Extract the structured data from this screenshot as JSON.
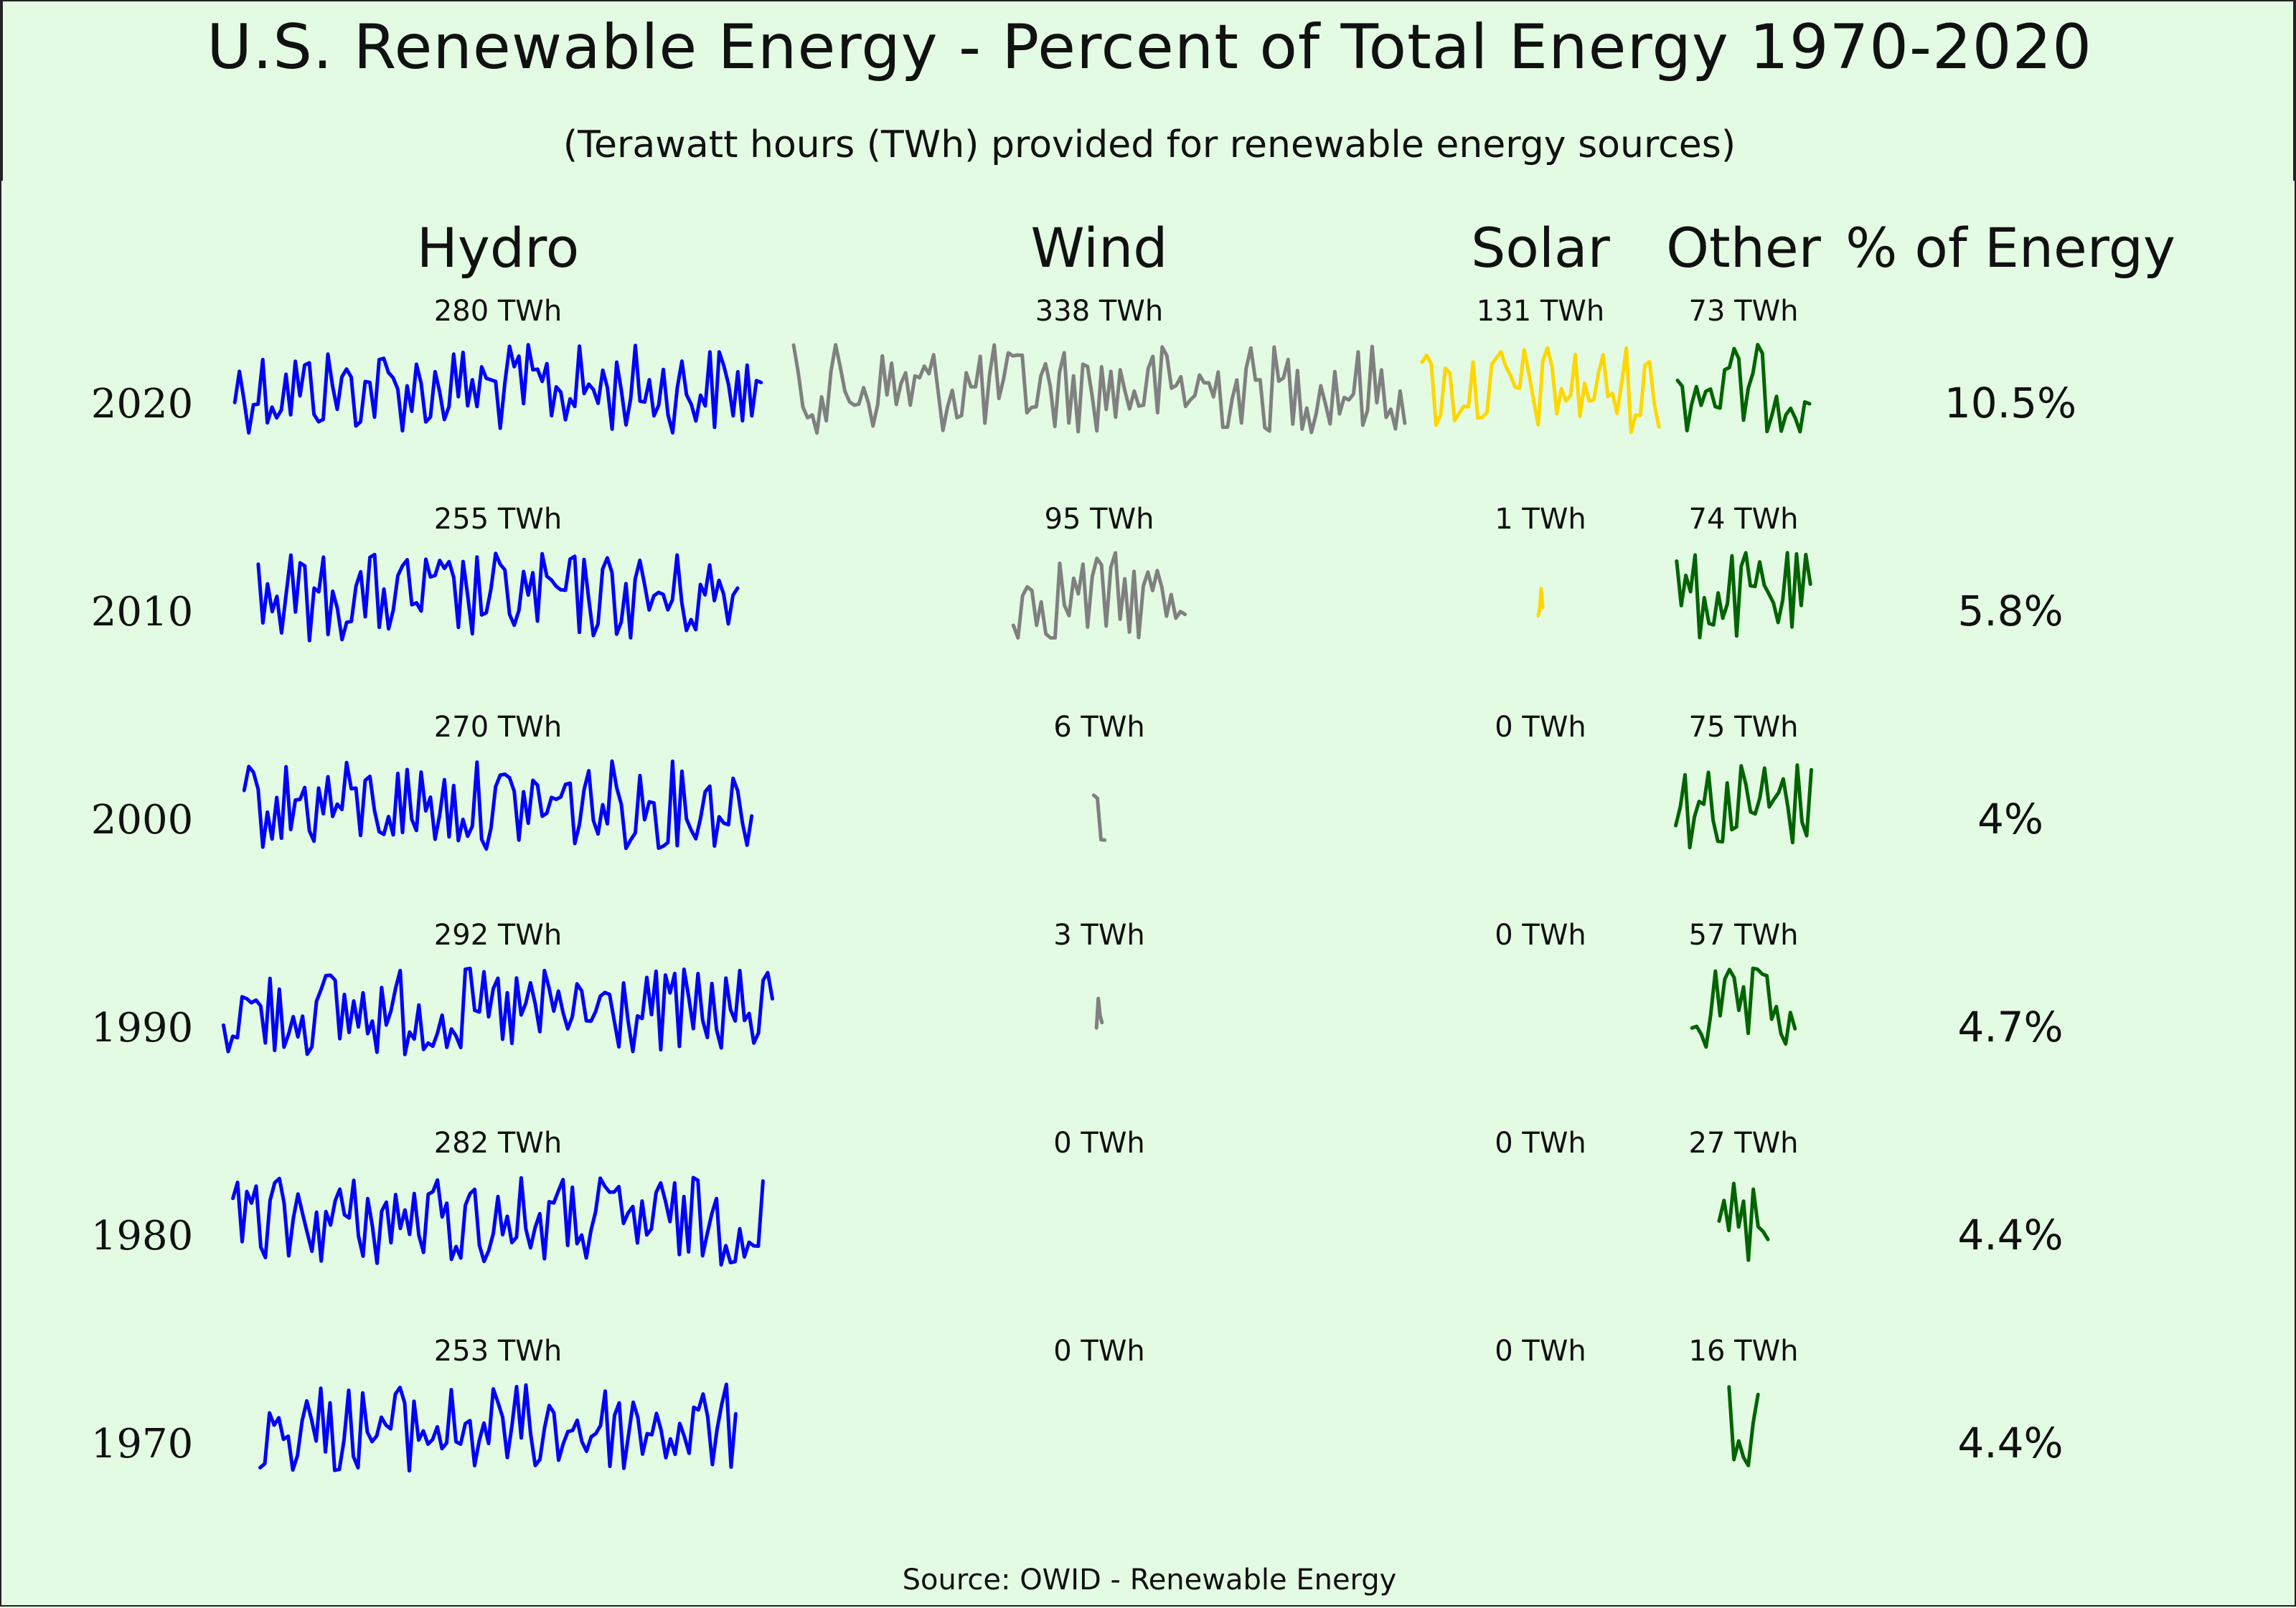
{
  "title": "U.S. Renewable Energy - Percent of Total Energy 1970-2020",
  "subtitle": "(Terawatt hours (TWh) provided for renewable energy sources)",
  "source": "Source: OWID - Renewable Energy",
  "chart_data": {
    "type": "table",
    "columns": [
      "Hydro",
      "Wind",
      "Solar",
      "Other",
      "% of Energy"
    ],
    "unit": "TWh",
    "colors": {
      "Hydro": "#0000ff",
      "Wind": "#808080",
      "Solar": "#ffd700",
      "Other": "#006400"
    },
    "rows": [
      {
        "year": "2020",
        "values": {
          "Hydro": 280,
          "Wind": 338,
          "Solar": 131,
          "Other": 73
        },
        "labels": {
          "Hydro": "280 TWh",
          "Wind": "338 TWh",
          "Solar": "131 TWh",
          "Other": "73 TWh"
        },
        "percent": "10.5%"
      },
      {
        "year": "2010",
        "values": {
          "Hydro": 255,
          "Wind": 95,
          "Solar": 1,
          "Other": 74
        },
        "labels": {
          "Hydro": "255 TWh",
          "Wind": "95 TWh",
          "Solar": "1 TWh",
          "Other": "74 TWh"
        },
        "percent": "5.8%"
      },
      {
        "year": "2000",
        "values": {
          "Hydro": 270,
          "Wind": 6,
          "Solar": 0,
          "Other": 75
        },
        "labels": {
          "Hydro": "270 TWh",
          "Wind": "6 TWh",
          "Solar": "0 TWh",
          "Other": "75 TWh"
        },
        "percent": "4%"
      },
      {
        "year": "1990",
        "values": {
          "Hydro": 292,
          "Wind": 3,
          "Solar": 0,
          "Other": 57
        },
        "labels": {
          "Hydro": "292 TWh",
          "Wind": "3 TWh",
          "Solar": "0 TWh",
          "Other": "57 TWh"
        },
        "percent": "4.7%"
      },
      {
        "year": "1980",
        "values": {
          "Hydro": 282,
          "Wind": 0,
          "Solar": 0,
          "Other": 27
        },
        "labels": {
          "Hydro": "282 TWh",
          "Wind": "0 TWh",
          "Solar": "0 TWh",
          "Other": "27 TWh"
        },
        "percent": "4.4%"
      },
      {
        "year": "1970",
        "values": {
          "Hydro": 253,
          "Wind": 0,
          "Solar": 0,
          "Other": 16
        },
        "labels": {
          "Hydro": "253 TWh",
          "Wind": "0 TWh",
          "Solar": "0 TWh",
          "Other": "16 TWh"
        },
        "percent": "4.4%"
      }
    ]
  }
}
